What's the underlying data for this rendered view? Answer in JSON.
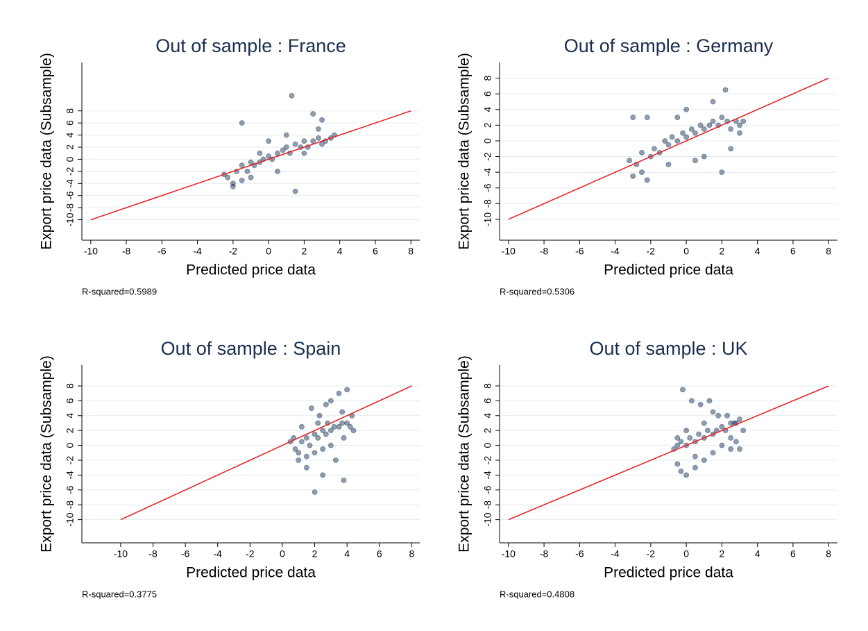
{
  "chart_data": [
    {
      "type": "scatter",
      "title": "Out of sample : France",
      "xlabel": "Predicted price data",
      "ylabel": "Export price data (Subsample)",
      "note": "R-squared=0.5989",
      "x": [
        -2.5,
        -2.3,
        -2,
        -1.8,
        -1.5,
        -1.2,
        -1,
        -0.8,
        -0.5,
        -0.3,
        0,
        0.2,
        0.5,
        0.8,
        1,
        1.2,
        1.5,
        1.8,
        2,
        2.2,
        2.5,
        2.8,
        3,
        3.2,
        3.5,
        3.7,
        -2,
        -1.5,
        -0.5,
        0.5,
        1.3,
        1.5,
        -1.5,
        2.5,
        3,
        0,
        1,
        2,
        -1,
        2.8
      ],
      "values": [
        -2.5,
        -3,
        -4,
        -2,
        -1,
        -2,
        -0.5,
        -1,
        -0.5,
        0,
        0.5,
        0,
        1,
        1.5,
        2,
        1,
        2.5,
        2,
        3,
        2,
        3,
        3.5,
        2.5,
        3,
        3.5,
        4,
        -4.5,
        -3.5,
        1,
        -2,
        10.5,
        -5.3,
        6,
        7.5,
        6.5,
        3,
        4,
        1,
        -3,
        5
      ],
      "color": "#1f3b5c",
      "fit_line": {
        "x": [
          -10,
          8
        ],
        "values": [
          -10,
          8
        ],
        "color": "#e8262a"
      },
      "xlim": [
        -10.5,
        8.5
      ],
      "ylim": [
        -12,
        16
      ],
      "xticks": [
        -10,
        -8,
        -6,
        -4,
        -2,
        0,
        2,
        4,
        6,
        8
      ],
      "yticks": [
        -10,
        -8,
        -6,
        -4,
        -2,
        0,
        2,
        4,
        6,
        8
      ],
      "grid": true
    },
    {
      "type": "scatter",
      "title": "Out of sample : Germany",
      "xlabel": "Predicted price data",
      "ylabel": "Export price data (Subsample)",
      "note": "R-squared=0.5306",
      "x": [
        -3.2,
        -3,
        -2.8,
        -2.5,
        -2.2,
        -2,
        -1.8,
        -1.5,
        -1.2,
        -1,
        -0.8,
        -0.5,
        -0.2,
        0,
        0.3,
        0.5,
        0.8,
        1,
        1.3,
        1.5,
        1.8,
        2,
        2.3,
        2.5,
        2.8,
        3,
        3.2,
        -3,
        -2.2,
        -2.5,
        0,
        1.5,
        2.2,
        2.5,
        -1,
        0.5,
        1,
        2,
        3,
        -0.5
      ],
      "values": [
        -2.5,
        3,
        -3,
        -1.5,
        -5,
        -2,
        -1,
        -1.5,
        0,
        -0.5,
        0.5,
        0,
        1,
        0.5,
        1.5,
        1,
        2,
        1.5,
        2,
        2.5,
        2,
        3,
        2.5,
        1.5,
        2.5,
        2,
        2.5,
        -4.5,
        3,
        -4,
        4,
        5,
        6.5,
        -1,
        -3,
        -2.5,
        -2,
        -4,
        1,
        3
      ],
      "color": "#1f3b5c",
      "fit_line": {
        "x": [
          -10,
          8
        ],
        "values": [
          -10,
          8
        ],
        "color": "#e8262a"
      },
      "xlim": [
        -10.5,
        8.5
      ],
      "ylim": [
        -11.6,
        10
      ],
      "xticks": [
        -10,
        -8,
        -6,
        -4,
        -2,
        0,
        2,
        4,
        6,
        8
      ],
      "yticks": [
        -10,
        -8,
        -6,
        -4,
        -2,
        0,
        2,
        4,
        6,
        8
      ],
      "grid": true
    },
    {
      "type": "scatter",
      "title": "Out of sample : Spain",
      "xlabel": "Predicted price data",
      "ylabel": "Export price data (Subsample)",
      "note": "R-squared=0.3775",
      "x": [
        0.5,
        0.7,
        1,
        1.2,
        1.5,
        1.7,
        2,
        2.2,
        2.5,
        2.7,
        3,
        3.2,
        3.5,
        3.7,
        4,
        4.2,
        4.4,
        1,
        1.5,
        2,
        2.5,
        3,
        3.5,
        4,
        1.8,
        2.3,
        2.8,
        3.3,
        3.8,
        2,
        3.7,
        2.5,
        1.2,
        4.3,
        0.8,
        3,
        2.2,
        3.8,
        1.5,
        2.7
      ],
      "values": [
        0.5,
        1,
        -1,
        0.5,
        1,
        0,
        1.5,
        1,
        2,
        1.5,
        2,
        2.5,
        2.5,
        3,
        3,
        2.5,
        2,
        -2,
        -3,
        -6.3,
        -4,
        6,
        7,
        7.5,
        5,
        4,
        3,
        -2,
        -4.7,
        -1,
        4.5,
        -0.5,
        2.5,
        4,
        -0.5,
        0,
        3,
        1,
        -1.5,
        5.5
      ],
      "color": "#1f3b5c",
      "fit_line": {
        "x": [
          -10,
          8
        ],
        "values": [
          -10,
          8
        ],
        "color": "#e8262a"
      },
      "xlim": [
        -12.4,
        8.5
      ],
      "ylim": [
        -12,
        10.8
      ],
      "xticks": [
        -10,
        -8,
        -6,
        -4,
        -2,
        0,
        2,
        4,
        6,
        8
      ],
      "yticks": [
        -10,
        -8,
        -6,
        -4,
        -2,
        0,
        2,
        4,
        6,
        8
      ],
      "grid": true
    },
    {
      "type": "scatter",
      "title": "Out of sample : UK",
      "xlabel": "Predicted price data",
      "ylabel": "Export price data (Subsample)",
      "note": "R-squared=0.4808",
      "x": [
        -0.7,
        -0.5,
        -0.3,
        0,
        0.2,
        0.5,
        0.7,
        1,
        1.2,
        1.5,
        1.7,
        2,
        2.2,
        2.5,
        2.7,
        3,
        3.2,
        -0.5,
        0,
        0.5,
        1,
        1.5,
        2,
        2.5,
        3,
        -0.2,
        0.3,
        0.8,
        1.3,
        1.8,
        2.3,
        2.8,
        -0.3,
        0.5,
        1,
        2.8,
        1.5,
        0,
        -0.5,
        2.5
      ],
      "values": [
        -0.5,
        0,
        0.5,
        0,
        1,
        0.5,
        1.5,
        1,
        2,
        1.5,
        2,
        2.5,
        2,
        3,
        3,
        3.5,
        2,
        -2.5,
        -4,
        -3,
        -2,
        -1,
        0,
        1,
        -0.5,
        7.5,
        6,
        5.5,
        6,
        4,
        4,
        3,
        -3.5,
        -1.5,
        3,
        0.5,
        4.5,
        2,
        1,
        -0.5
      ],
      "color": "#1f3b5c",
      "fit_line": {
        "x": [
          -10,
          8
        ],
        "values": [
          -10,
          8
        ],
        "color": "#e8262a"
      },
      "xlim": [
        -10.5,
        8.5
      ],
      "ylim": [
        -12,
        10.8
      ],
      "xticks": [
        -10,
        -8,
        -6,
        -4,
        -2,
        0,
        2,
        4,
        6,
        8
      ],
      "yticks": [
        -10,
        -8,
        -6,
        -4,
        -2,
        0,
        2,
        4,
        6,
        8
      ],
      "grid": true
    }
  ]
}
